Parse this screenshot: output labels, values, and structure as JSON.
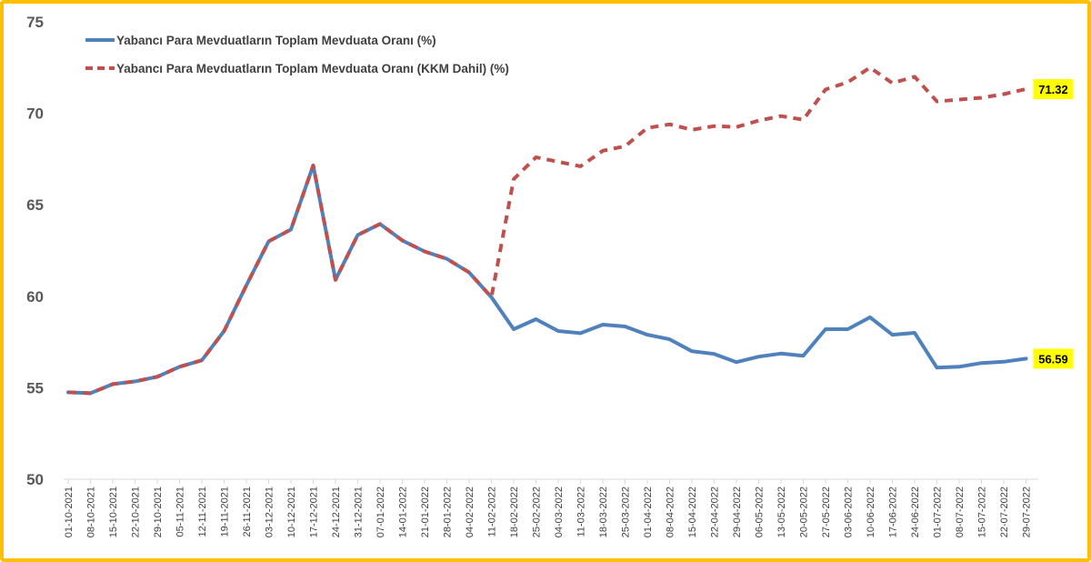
{
  "chart_data": {
    "type": "line",
    "title": "",
    "xlabel": "",
    "ylabel": "",
    "ylim": [
      50,
      75
    ],
    "yticks": [
      "50",
      "55",
      "60",
      "65",
      "70",
      "75"
    ],
    "grid": "none",
    "legend_position": "top-left",
    "categories": [
      "01-10-2021",
      "08-10-2021",
      "15-10-2021",
      "22-10-2021",
      "29-10-2021",
      "05-11-2021",
      "12-11-2021",
      "19-11-2021",
      "26-11-2021",
      "03-12-2021",
      "10-12-2021",
      "17-12-2021",
      "24-12-2021",
      "31-12-2021",
      "07-01-2022",
      "14-01-2022",
      "21-01-2022",
      "28-01-2022",
      "04-02-2022",
      "11-02-2022",
      "18-02-2022",
      "25-02-2022",
      "04-03-2022",
      "11-03-2022",
      "18-03-2022",
      "25-03-2022",
      "01-04-2022",
      "08-04-2022",
      "15-04-2022",
      "22-04-2022",
      "29-04-2022",
      "06-05-2022",
      "13-05-2022",
      "20-05-2022",
      "27-05-2022",
      "03-06-2022",
      "10-06-2022",
      "17-06-2022",
      "24-06-2022",
      "01-07-2022",
      "08-07-2022",
      "15-07-2022",
      "22-07-2022",
      "29-07-2022"
    ],
    "series": [
      {
        "name": "Yabancı Para Mevduatların Toplam Mevduata Oranı (%)",
        "color": "#4f81bd",
        "style": "solid",
        "end_label": "56.59",
        "values": [
          54.75,
          54.7,
          55.2,
          55.35,
          55.6,
          56.15,
          56.5,
          58.1,
          60.6,
          63.0,
          63.65,
          67.15,
          60.9,
          63.35,
          63.95,
          63.05,
          62.45,
          62.05,
          61.3,
          59.95,
          58.2,
          58.75,
          58.1,
          57.98,
          58.45,
          58.35,
          57.9,
          57.65,
          57.0,
          56.85,
          56.4,
          56.7,
          56.87,
          56.75,
          58.2,
          58.2,
          58.85,
          57.9,
          58.0,
          56.1,
          56.15,
          56.35,
          56.42,
          56.59
        ]
      },
      {
        "name": "Yabancı Para Mevduatların Toplam Mevduata Oranı (KKM Dahil) (%)",
        "color": "#c0504d",
        "style": "dashed",
        "end_label": "71.32",
        "values": [
          54.75,
          54.7,
          55.2,
          55.35,
          55.6,
          56.15,
          56.5,
          58.1,
          60.6,
          63.0,
          63.65,
          67.15,
          60.9,
          63.35,
          63.95,
          63.05,
          62.45,
          62.05,
          61.3,
          59.95,
          66.4,
          67.6,
          67.35,
          67.1,
          67.95,
          68.2,
          69.2,
          69.4,
          69.1,
          69.3,
          69.25,
          69.6,
          69.85,
          69.65,
          71.3,
          71.7,
          72.5,
          71.65,
          72.0,
          70.65,
          70.75,
          70.85,
          71.05,
          71.32
        ]
      }
    ],
    "highlight_color": "#ffff00"
  }
}
